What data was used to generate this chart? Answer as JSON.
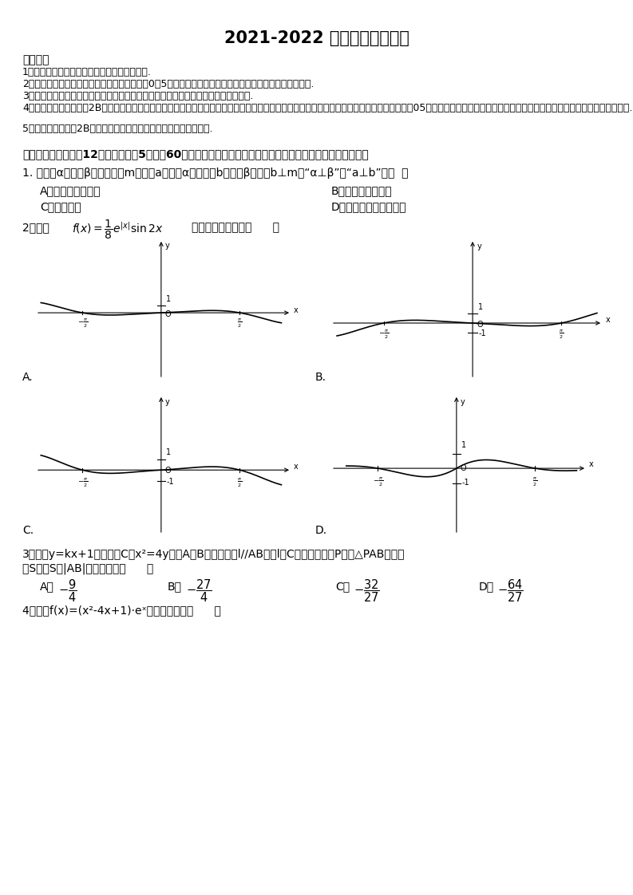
{
  "title": "2021-2022 高考数学模拟试卷",
  "background": "#ffffff",
  "notice_header": "注意事项",
  "notice_items": [
    "1．考试结束后，请将本试卷和答题卡一并交回.",
    "2．答题前，请务必将自己的姓名、准考证号用0．5毫米黑色墨水的签字笔填写在试卷及答题卡的规定位置.",
    "3．请认真核对监考员在答题卡上所粘贴的条形码上的姓名、准考证号与本人是否相符.",
    "4．作答选择题，必须用2B铅笔将答题卡上对应选项的方框涂满、涂黑；如需改动，请用橡皮擦干净后，再选涂其他答案．作答非选择题，必须甇05毫米黑色墨水的签字笔在答题卡上的指定位置作答，在其他位置作答一律无效.",
    "5．如需作图，须用2B铅笔绘、写清楚，线条、符号等须加黑、加粗."
  ],
  "section1_header": "一、选择题：本题內12小题，每小题5分，內60分。在每小题给出的四个选项中，只有一项是符合题目要求的。",
  "q1_text": "1. 设平面α与平面β相交于直线m，直线a在平面α内，直线b在平面β内，且b⊥m则“α⊥β”是“a⊥b”的（  ）",
  "q1_A": "A．充分不必要条件",
  "q1_B": "B．必要不充分条件",
  "q1_C": "C．充要条件",
  "q1_D": "D．即不充分不必要条件",
  "q3_line1": "3．直线y=kx+1与抛物线C：x²=4y交于A，B两点，直线l//AB，且l与C相切，切点为P，记△PAB的面积",
  "q3_line2": "为S，则S－|AB|的最小值为（      ）",
  "q4_text": "4．函数f(x)=(x²-4x+1)·eˣ的大致图象是（      ）"
}
